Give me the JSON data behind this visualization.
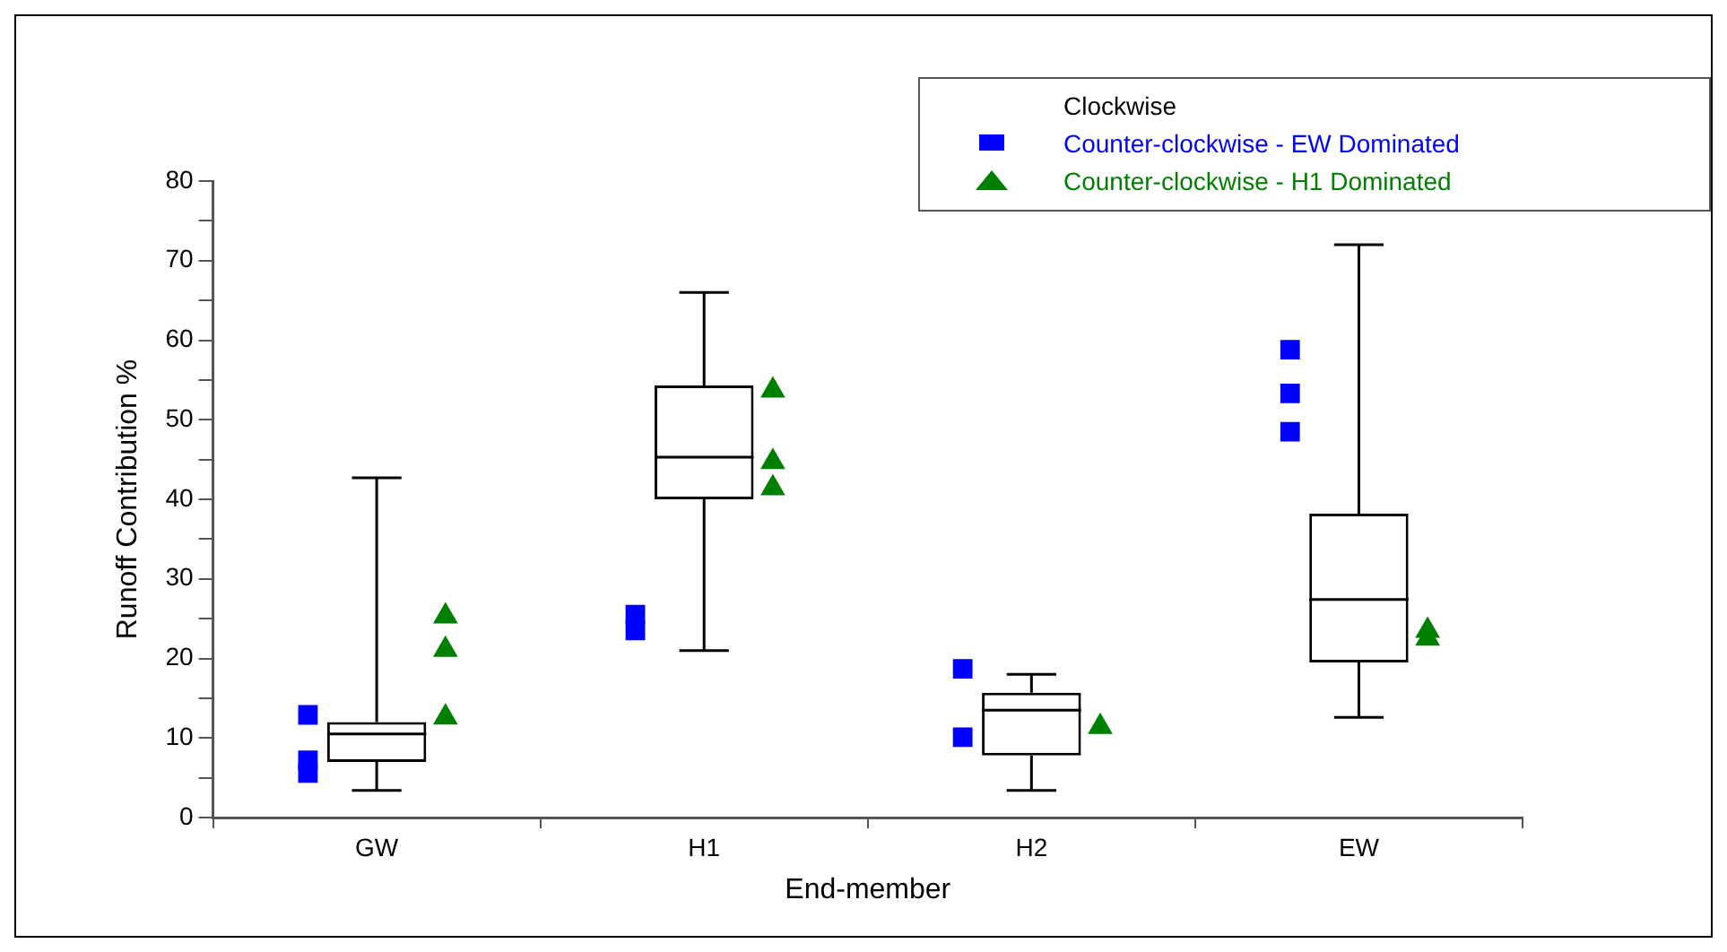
{
  "chart_data": {
    "type": "box",
    "xlabel": "End-member",
    "ylabel": "Runoff Contribution %",
    "categories": [
      "GW",
      "H1",
      "H2",
      "EW"
    ],
    "ylim": [
      0,
      80
    ],
    "yticks": [
      0,
      {
        "value": 5,
        "label": null
      },
      10,
      {
        "value": 15,
        "label": null
      },
      20,
      {
        "value": 25,
        "label": null
      },
      30,
      {
        "value": 35,
        "label": null
      },
      40,
      {
        "value": 45,
        "label": null
      },
      50,
      {
        "value": 55,
        "label": null
      },
      60,
      {
        "value": 65,
        "label": null
      },
      70,
      {
        "value": 75,
        "label": null
      },
      80
    ],
    "grid": false,
    "legend": "top right",
    "series": [
      {
        "name": "Clockwise",
        "color": "#000000",
        "boxes": [
          {
            "low": 3.4,
            "q1": 7,
            "median": 10.5,
            "q3": 12,
            "high": 42.7
          },
          {
            "low": 21,
            "q1": 40,
            "median": 45.3,
            "q3": 54.3,
            "high": 66
          },
          {
            "low": 3.4,
            "q1": 7.8,
            "median": 13.5,
            "q3": 15.7,
            "high": 18
          },
          {
            "low": 12.6,
            "q1": 19.5,
            "median": 27.4,
            "q3": 38.2,
            "high": 72
          }
        ]
      },
      {
        "name": "Counter-clockwise - EW Dominated",
        "type": "scatter",
        "marker": "square",
        "color": "#0000ff",
        "x": [
          "GW",
          "GW",
          "GW",
          "H1",
          "H1",
          "H2",
          "H2",
          "EW",
          "EW",
          "EW"
        ],
        "values": [
          12.9,
          7.2,
          5.6,
          25.5,
          23.5,
          18.7,
          10.1,
          58.8,
          53.3,
          48.5
        ]
      },
      {
        "name": "Counter-clockwise - H1 Dominated",
        "type": "scatter",
        "marker": "triangle",
        "color": "#008000",
        "x": [
          "GW",
          "GW",
          "GW",
          "H1",
          "H1",
          "H1",
          "H2",
          "EW",
          "EW"
        ],
        "values": [
          25.3,
          21.1,
          12.6,
          53.7,
          44.7,
          41.4,
          11.4,
          23.5,
          22.5
        ]
      }
    ]
  }
}
